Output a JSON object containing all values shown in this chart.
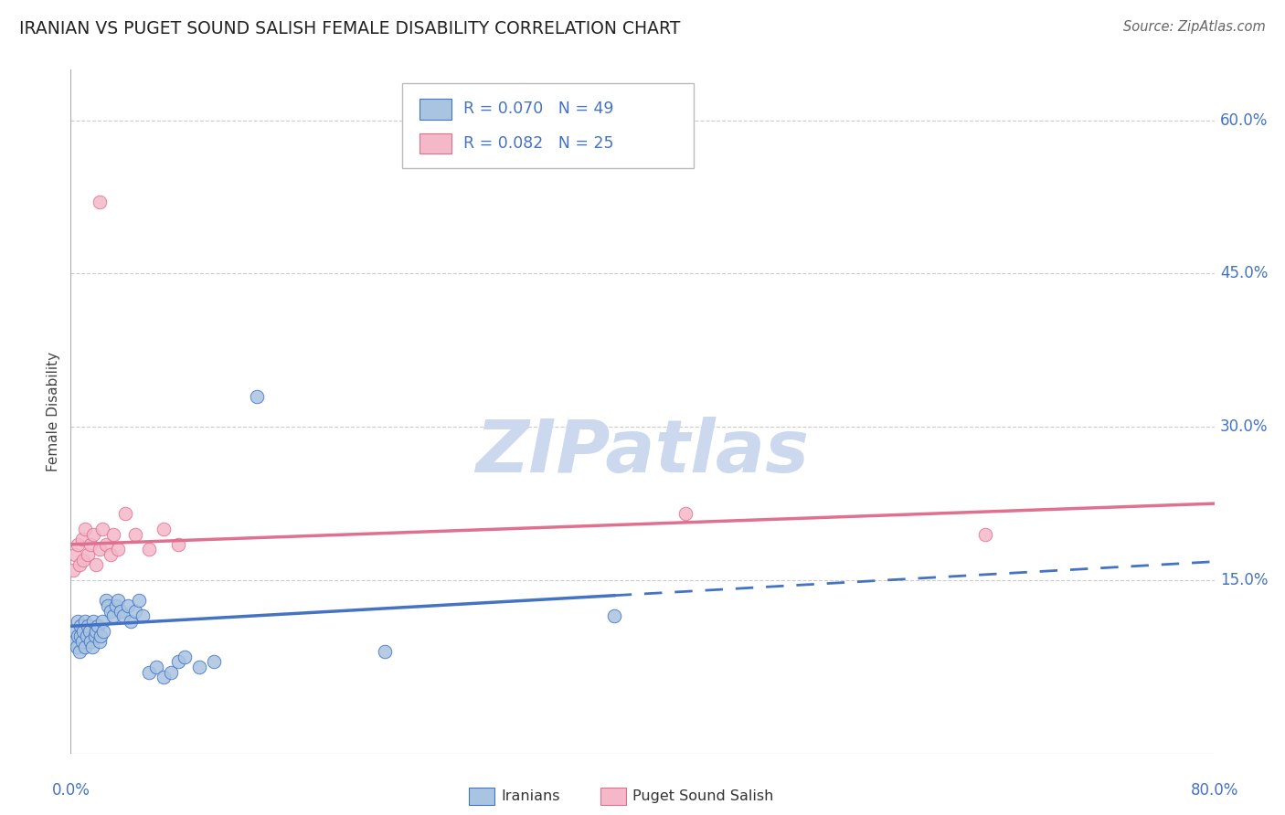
{
  "title": "IRANIAN VS PUGET SOUND SALISH FEMALE DISABILITY CORRELATION CHART",
  "source": "Source: ZipAtlas.com",
  "ylabel": "Female Disability",
  "xlim": [
    0.0,
    0.8
  ],
  "ylim": [
    -0.02,
    0.65
  ],
  "ytick_vals": [
    0.15,
    0.3,
    0.45,
    0.6
  ],
  "ytick_labels": [
    "15.0%",
    "30.0%",
    "45.0%",
    "60.0%"
  ],
  "grid_color": "#cccccc",
  "background_color": "#ffffff",
  "title_color": "#222222",
  "axis_label_color": "#444444",
  "tick_label_color": "#4472c4",
  "legend_R_color": "#4472c4",
  "iranians_color": "#a8c4e0",
  "iranians_edge_color": "#4472c4",
  "puget_color": "#f4b8c8",
  "puget_edge_color": "#e07090",
  "iranians_line_color": "#4472c4",
  "puget_line_color": "#e07090",
  "R_iranian": 0.07,
  "N_iranian": 49,
  "R_puget": 0.082,
  "N_puget": 25,
  "iranians_x": [
    0.002,
    0.003,
    0.004,
    0.005,
    0.005,
    0.006,
    0.007,
    0.007,
    0.008,
    0.009,
    0.01,
    0.01,
    0.011,
    0.012,
    0.013,
    0.014,
    0.015,
    0.016,
    0.017,
    0.018,
    0.019,
    0.02,
    0.021,
    0.022,
    0.023,
    0.025,
    0.026,
    0.028,
    0.03,
    0.032,
    0.033,
    0.035,
    0.037,
    0.04,
    0.042,
    0.045,
    0.048,
    0.05,
    0.055,
    0.06,
    0.065,
    0.07,
    0.075,
    0.08,
    0.09,
    0.1,
    0.13,
    0.22,
    0.38
  ],
  "iranians_y": [
    0.09,
    0.1,
    0.085,
    0.095,
    0.11,
    0.08,
    0.095,
    0.105,
    0.09,
    0.1,
    0.085,
    0.11,
    0.095,
    0.105,
    0.1,
    0.09,
    0.085,
    0.11,
    0.095,
    0.1,
    0.105,
    0.09,
    0.095,
    0.11,
    0.1,
    0.13,
    0.125,
    0.12,
    0.115,
    0.125,
    0.13,
    0.12,
    0.115,
    0.125,
    0.11,
    0.12,
    0.13,
    0.115,
    0.06,
    0.065,
    0.055,
    0.06,
    0.07,
    0.075,
    0.065,
    0.07,
    0.33,
    0.08,
    0.115
  ],
  "puget_x": [
    0.002,
    0.003,
    0.005,
    0.006,
    0.008,
    0.009,
    0.01,
    0.012,
    0.014,
    0.016,
    0.018,
    0.02,
    0.022,
    0.025,
    0.028,
    0.03,
    0.033,
    0.038,
    0.045,
    0.055,
    0.065,
    0.075,
    0.43,
    0.64,
    0.02
  ],
  "puget_y": [
    0.16,
    0.175,
    0.185,
    0.165,
    0.19,
    0.17,
    0.2,
    0.175,
    0.185,
    0.195,
    0.165,
    0.18,
    0.2,
    0.185,
    0.175,
    0.195,
    0.18,
    0.215,
    0.195,
    0.18,
    0.2,
    0.185,
    0.215,
    0.195,
    0.52
  ],
  "watermark_text": "ZIPatlas",
  "watermark_color": "#ccd8ee"
}
